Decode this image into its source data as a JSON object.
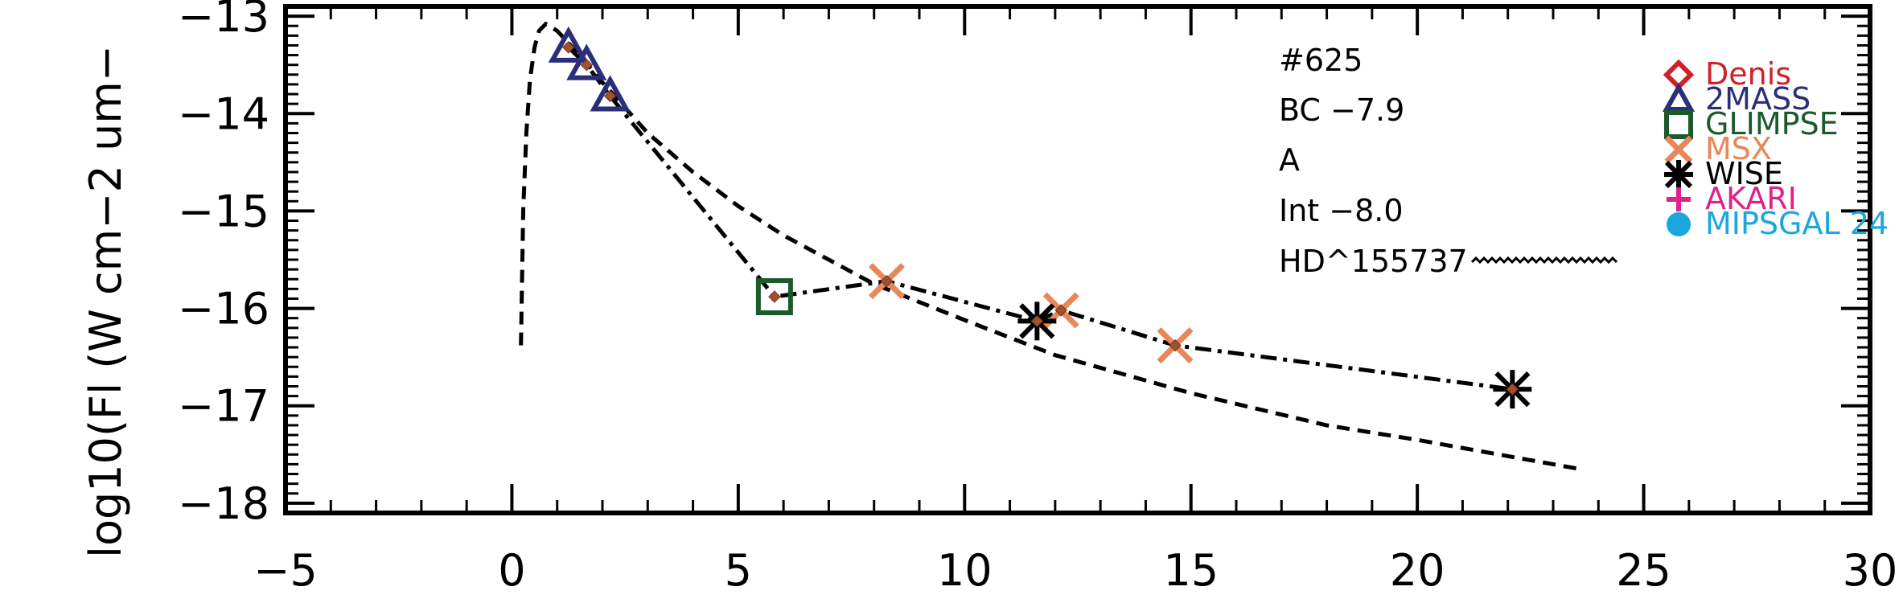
{
  "chart_data": {
    "type": "scatter",
    "title": "",
    "xlabel": "",
    "ylabel": "log10(Fl (W cm−2 um−",
    "xlim": [
      -5,
      30
    ],
    "ylim": [
      -18.1,
      -12.9
    ],
    "xticks": [
      -5,
      0,
      5,
      10,
      15,
      20,
      25,
      30
    ],
    "xtick_labels": [
      "−5",
      "0",
      "5",
      "10",
      "15",
      "20",
      "25",
      "30"
    ],
    "yticks": [
      -13,
      -14,
      -15,
      -16,
      -17,
      -18
    ],
    "ytick_labels": [
      "−13",
      "−14",
      "−15",
      "−16",
      "−17",
      "−18"
    ],
    "grid": false,
    "legend_placement": "top-right",
    "annotations": [
      "#625",
      "BC  −7.9",
      "A",
      "Int  −8.0",
      "HD^155737"
    ],
    "series": [
      {
        "name": "Denis",
        "marker": "diamond",
        "color": "#d0202a",
        "points": []
      },
      {
        "name": "2MASS",
        "marker": "triangle",
        "color": "#2b2f7a",
        "points": [
          [
            1.25,
            -13.32
          ],
          [
            1.65,
            -13.5
          ],
          [
            2.17,
            -13.82
          ]
        ]
      },
      {
        "name": "GLIMPSE",
        "marker": "square",
        "color": "#1b5a2a",
        "points": [
          [
            5.8,
            -15.88
          ]
        ]
      },
      {
        "name": "MSX",
        "marker": "x",
        "color": "#e8875a",
        "points": [
          [
            8.28,
            -15.72
          ],
          [
            12.13,
            -16.02
          ],
          [
            14.65,
            -16.38
          ]
        ]
      },
      {
        "name": "WISE",
        "marker": "asterisk",
        "color": "#000000",
        "points": [
          [
            11.6,
            -16.13
          ],
          [
            22.1,
            -16.83
          ]
        ]
      },
      {
        "name": "AKARI",
        "marker": "plus",
        "color": "#e0218a",
        "points": []
      },
      {
        "name": "MIPSGAL 24",
        "marker": "circle",
        "color": "#1aa7dd",
        "points": []
      }
    ],
    "curves": [
      {
        "style": "dashed",
        "points": [
          [
            0.2,
            -16.38
          ],
          [
            0.25,
            -15.0
          ],
          [
            0.32,
            -14.2
          ],
          [
            0.4,
            -13.65
          ],
          [
            0.5,
            -13.32
          ],
          [
            0.6,
            -13.15
          ],
          [
            0.75,
            -13.08
          ],
          [
            1.0,
            -13.15
          ],
          [
            1.5,
            -13.4
          ],
          [
            2.0,
            -13.68
          ],
          [
            3.0,
            -14.2
          ],
          [
            4.0,
            -14.6
          ],
          [
            5.0,
            -14.95
          ],
          [
            6.0,
            -15.25
          ],
          [
            8.0,
            -15.75
          ],
          [
            10.0,
            -16.12
          ],
          [
            12.0,
            -16.48
          ],
          [
            15.0,
            -16.87
          ],
          [
            18.0,
            -17.2
          ],
          [
            20.0,
            -17.35
          ],
          [
            23.6,
            -17.65
          ]
        ]
      },
      {
        "style": "dash-dot",
        "points": [
          [
            1.25,
            -13.32
          ],
          [
            1.65,
            -13.5
          ],
          [
            2.17,
            -13.82
          ],
          [
            5.8,
            -15.88
          ],
          [
            8.28,
            -15.72
          ],
          [
            11.6,
            -16.13
          ],
          [
            12.13,
            -16.02
          ],
          [
            14.65,
            -16.38
          ],
          [
            22.1,
            -16.83
          ]
        ]
      }
    ]
  }
}
